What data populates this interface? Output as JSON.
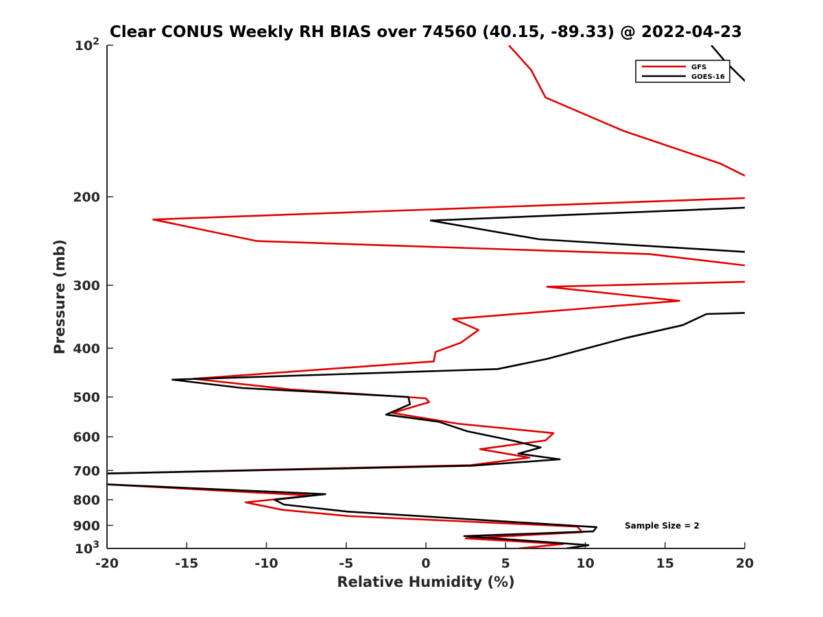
{
  "chart_data": {
    "type": "line",
    "title": "Clear CONUS Weekly RH BIAS over 74560 (40.15, -89.33) @ 2022-04-23",
    "xlabel": "Relative Humidity (%)",
    "ylabel": "Pressure (mb)",
    "xlim": [
      -20,
      20
    ],
    "ylim": [
      100,
      1000
    ],
    "y_scale": "log",
    "y_reversed": true,
    "grid": false,
    "legend_position": "top-right",
    "x_ticks": [
      "-20",
      "-15",
      "-10",
      "-5",
      "0",
      "5",
      "10",
      "15",
      "20"
    ],
    "x_tick_values": [
      -20,
      -15,
      -10,
      -5,
      0,
      5,
      10,
      15,
      20
    ],
    "y_ticks": [
      {
        "value": 200,
        "label": "200"
      },
      {
        "value": 300,
        "label": "300"
      },
      {
        "value": 400,
        "label": "400"
      },
      {
        "value": 500,
        "label": "500"
      },
      {
        "value": 600,
        "label": "600"
      },
      {
        "value": 700,
        "label": "700"
      },
      {
        "value": 800,
        "label": "800"
      },
      {
        "value": 900,
        "label": "900"
      }
    ],
    "y_tick_pow": [
      {
        "value": 100,
        "base": "10",
        "exp": "2"
      },
      {
        "value": 1000,
        "base": "10",
        "exp": "3"
      }
    ],
    "series": [
      {
        "name": "GFS",
        "color": "#e00000",
        "x": [
          5.2,
          6.6,
          7.5,
          12.4,
          18.5,
          20.5,
          20.5,
          20.5,
          -17.1,
          -10.6,
          14.0,
          20.5,
          20.5,
          20.5,
          7.6,
          15.9,
          1.7,
          3.3,
          2.2,
          0.6,
          0.5,
          -14.6,
          -8.5,
          0.0,
          0.2,
          -2.1,
          2.0,
          8.0,
          7.5,
          3.4,
          6.5,
          2.8,
          -20.3,
          -20.3,
          -20.3,
          -7.2,
          -11.3,
          -9.0,
          -4.9,
          9.5,
          9.8,
          2.5,
          8.6,
          5.8
        ],
        "y": [
          100,
          112,
          127,
          148,
          172,
          185,
          196,
          201,
          222,
          245,
          260,
          275,
          285,
          295,
          302,
          322,
          350,
          368,
          390,
          407,
          425,
          460,
          483,
          503,
          512,
          538,
          565,
          590,
          610,
          635,
          660,
          683,
          710,
          728,
          745,
          785,
          810,
          838,
          862,
          905,
          928,
          955,
          980,
          1000
        ]
      },
      {
        "name": "GOES-16",
        "color": "#000000",
        "x": [
          17.9,
          18.8,
          20.5,
          20.5,
          20.5,
          0.3,
          7.1,
          20.5,
          20.5,
          20.5,
          20.5,
          17.6,
          16.1,
          12.5,
          7.6,
          4.5,
          -15.9,
          -11.5,
          -1.1,
          -1.0,
          -2.5,
          0.8,
          2.6,
          5.6,
          7.2,
          5.8,
          8.4,
          2.8,
          -20.3,
          -20.3,
          -20.3,
          -6.3,
          -9.5,
          -8.9,
          -4.9,
          10.7,
          10.5,
          2.4,
          10.2,
          8.8
        ],
        "y": [
          100,
          108,
          122,
          140,
          210,
          223,
          243,
          258,
          300,
          310,
          340,
          342,
          360,
          382,
          420,
          440,
          462,
          480,
          500,
          517,
          542,
          560,
          585,
          612,
          630,
          648,
          665,
          685,
          710,
          728,
          745,
          780,
          800,
          818,
          845,
          907,
          925,
          945,
          985,
          1000
        ]
      }
    ],
    "legend": [
      {
        "label": "GFS",
        "color": "#e00000"
      },
      {
        "label": "GOES-16",
        "color": "#000000"
      }
    ],
    "annotations": [
      "Sample Size = 2"
    ]
  }
}
